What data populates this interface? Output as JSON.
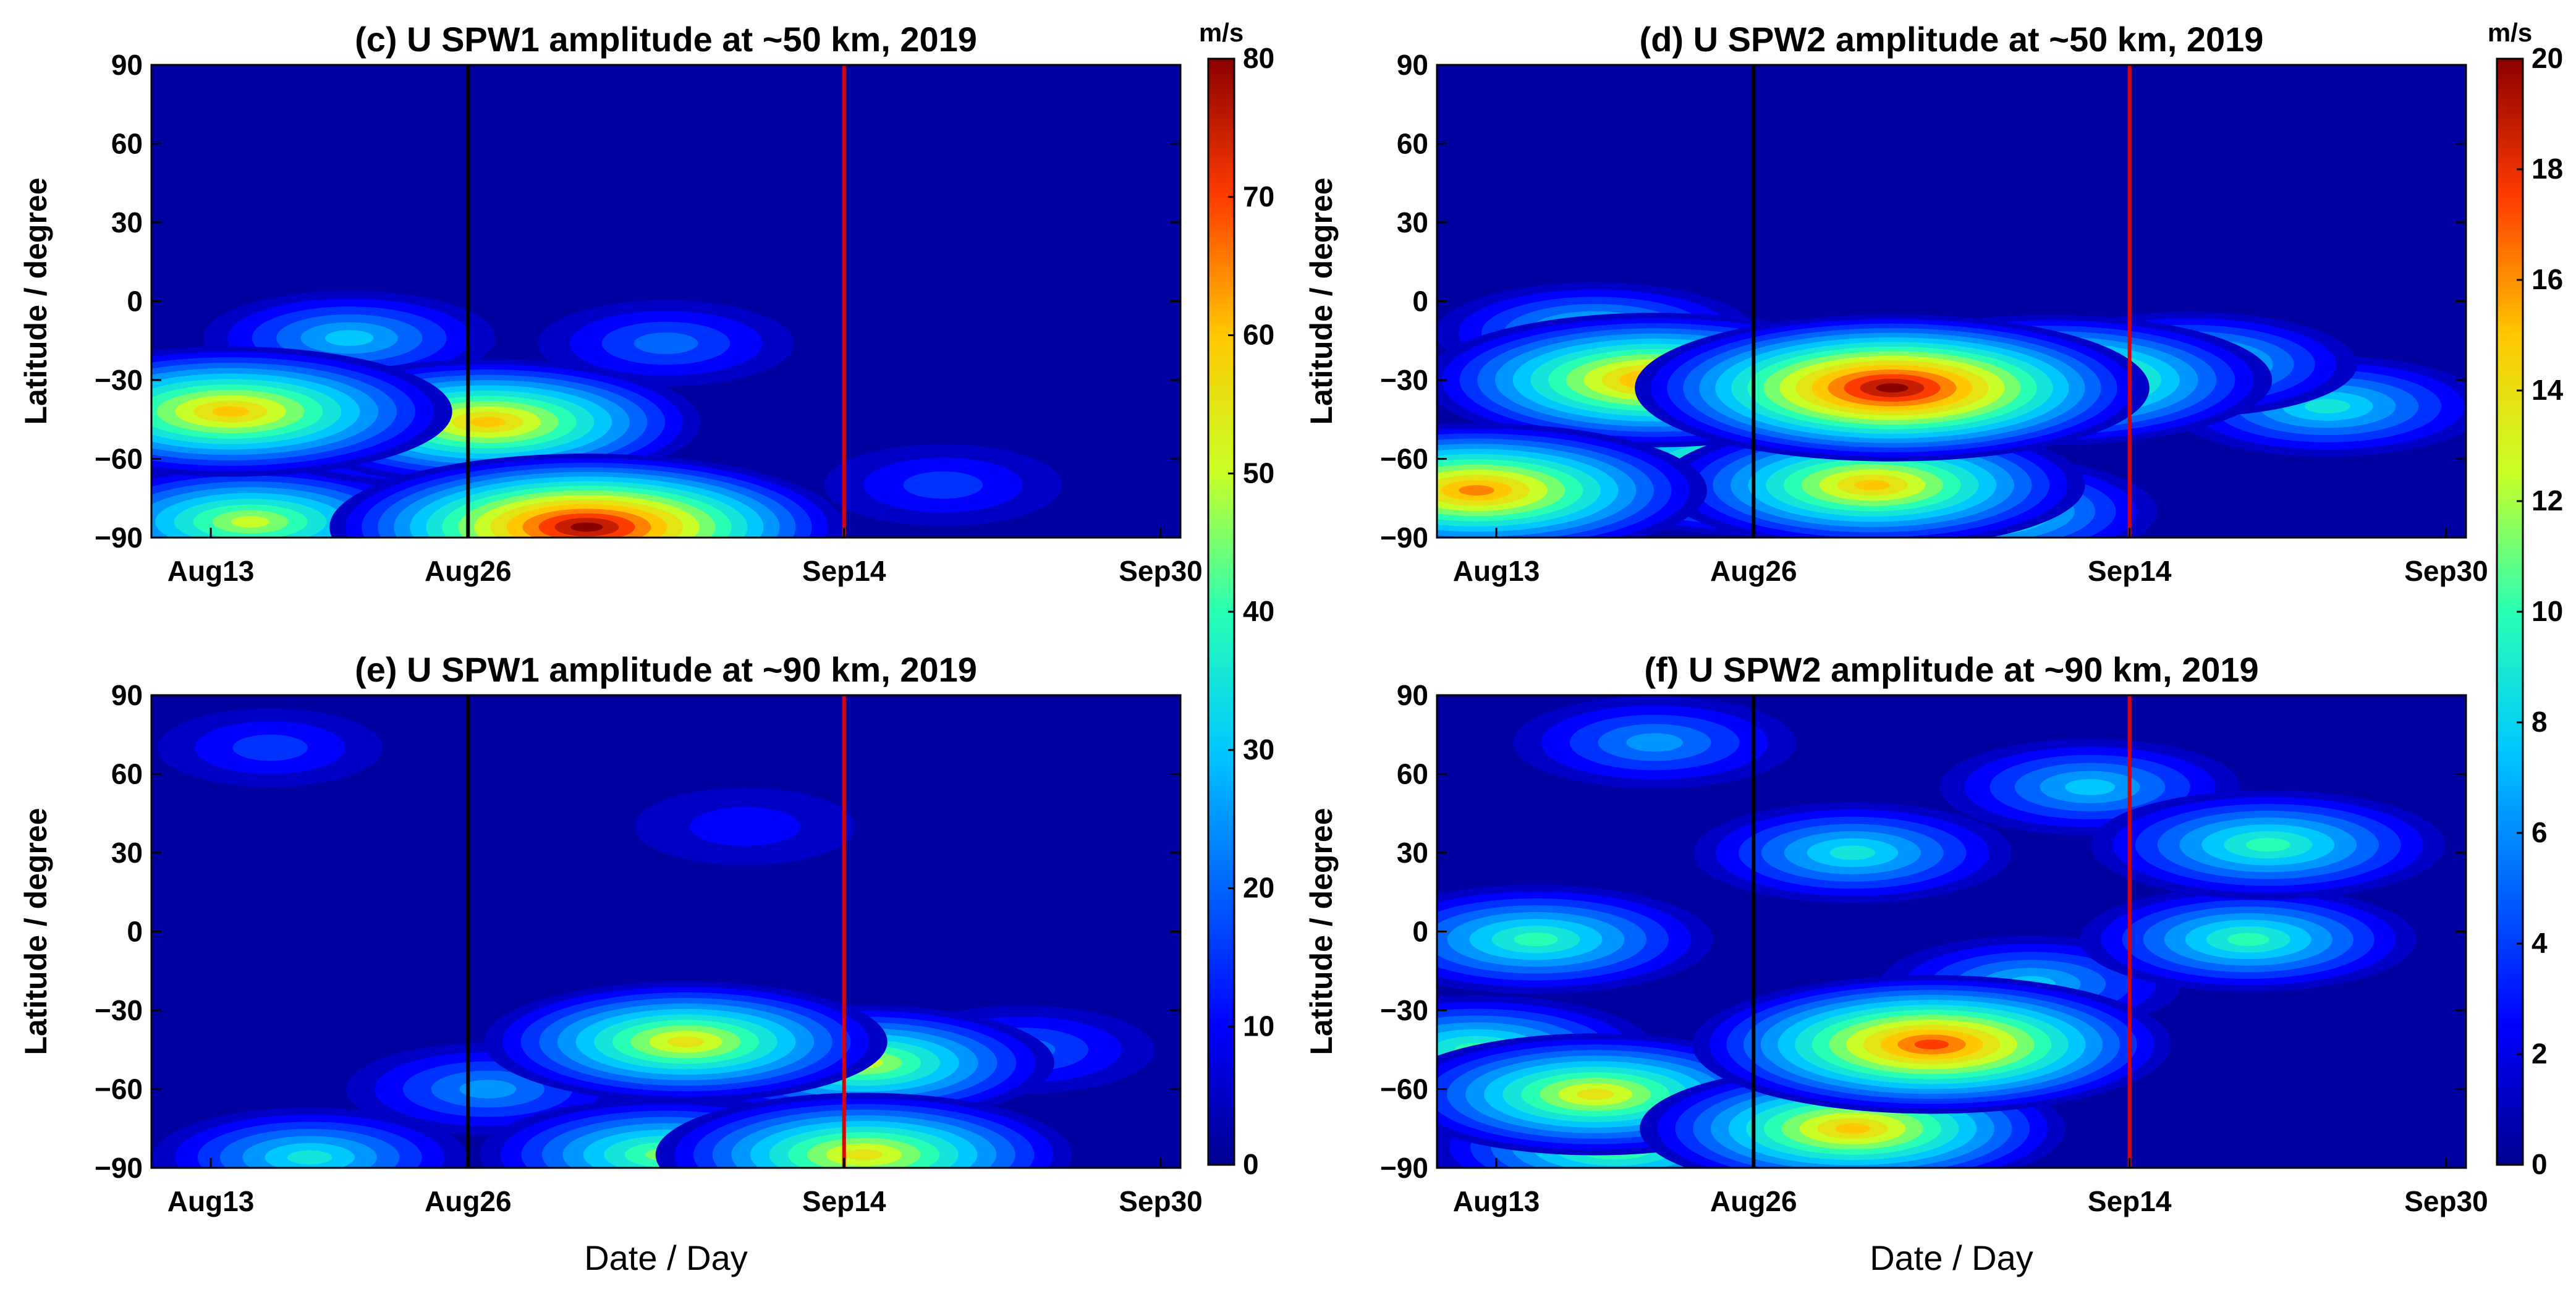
{
  "chart_data": [
    {
      "type": "heatmap",
      "title": "(c)  U SPW1 amplitude at ~50 km, 2019",
      "xlabel": "",
      "ylabel": "Latitude / degree",
      "y_ticks": [
        "90",
        "60",
        "30",
        "0",
        "−30",
        "−60",
        "−90"
      ],
      "x_ticks": [
        "Aug13",
        "Aug26",
        "Sep14",
        "Sep30"
      ],
      "ylim": [
        -90,
        90
      ],
      "colorbar": {
        "range": [
          0,
          80
        ],
        "unit": "m/s",
        "ticks": [
          "0",
          "10",
          "20",
          "30",
          "40",
          "50",
          "60",
          "70",
          "80"
        ]
      },
      "marker_lines": [
        {
          "date": "Aug26",
          "color": "#000000"
        },
        {
          "date": "Sep14",
          "color": "#e00000"
        }
      ],
      "features": [
        {
          "day": 4,
          "lat": -42,
          "value": 64
        },
        {
          "day": 17,
          "lat": -46,
          "value": 60
        },
        {
          "day": 14,
          "lat": -48,
          "value": 52
        },
        {
          "day": 5,
          "lat": -84,
          "value": 50
        },
        {
          "day": 22,
          "lat": -86,
          "value": 80
        },
        {
          "day": 10,
          "lat": -14,
          "value": 30
        },
        {
          "day": 26,
          "lat": -16,
          "value": 22
        },
        {
          "day": 40,
          "lat": -70,
          "value": 18
        }
      ]
    },
    {
      "type": "heatmap",
      "title": "(d)  U SPW2 amplitude at ~50 km, 2019",
      "xlabel": "",
      "ylabel": "Latitude / degree",
      "y_ticks": [
        "90",
        "60",
        "30",
        "0",
        "−30",
        "−60",
        "−90"
      ],
      "x_ticks": [
        "Aug13",
        "Aug26",
        "Sep14",
        "Sep30"
      ],
      "ylim": [
        -90,
        90
      ],
      "colorbar": {
        "range": [
          0,
          20
        ],
        "unit": "m/s",
        "ticks": [
          "0",
          "2",
          "4",
          "6",
          "8",
          "10",
          "12",
          "14",
          "16",
          "18",
          "20"
        ]
      },
      "marker_lines": [
        {
          "date": "Aug26",
          "color": "#000000"
        },
        {
          "date": "Sep14",
          "color": "#e00000"
        }
      ],
      "features": [
        {
          "day": 23,
          "lat": -33,
          "value": 20
        },
        {
          "day": 11,
          "lat": -30,
          "value": 17
        },
        {
          "day": 31,
          "lat": -30,
          "value": 16
        },
        {
          "day": 2,
          "lat": -72,
          "value": 17
        },
        {
          "day": 16,
          "lat": -65,
          "value": 15
        },
        {
          "day": 22,
          "lat": -70,
          "value": 15
        },
        {
          "day": 38,
          "lat": -24,
          "value": 10
        },
        {
          "day": 8,
          "lat": -12,
          "value": 9
        },
        {
          "day": 45,
          "lat": -40,
          "value": 9
        },
        {
          "day": 27,
          "lat": -80,
          "value": 12
        }
      ]
    },
    {
      "type": "heatmap",
      "title": "(e)  U SPW1 amplitude at ~90 km, 2019",
      "xlabel": "Date / Day",
      "ylabel": "Latitude / degree",
      "y_ticks": [
        "90",
        "60",
        "30",
        "0",
        "−30",
        "−60",
        "−90"
      ],
      "x_ticks": [
        "Aug13",
        "Aug26",
        "Sep14",
        "Sep30"
      ],
      "ylim": [
        -90,
        90
      ],
      "colorbar": {
        "range": [
          0,
          80
        ],
        "unit": "m/s",
        "ticks": [
          "0",
          "10",
          "20",
          "30",
          "40",
          "50",
          "60",
          "70",
          "80"
        ]
      },
      "marker_lines": [
        {
          "date": "Aug26",
          "color": "#000000"
        },
        {
          "date": "Sep14",
          "color": "#e00000"
        }
      ],
      "features": [
        {
          "day": 27,
          "lat": -42,
          "value": 55
        },
        {
          "day": 36,
          "lat": -50,
          "value": 50
        },
        {
          "day": 26,
          "lat": -85,
          "value": 48
        },
        {
          "day": 36,
          "lat": -85,
          "value": 58
        },
        {
          "day": 8,
          "lat": -86,
          "value": 35
        },
        {
          "day": 17,
          "lat": -60,
          "value": 28
        },
        {
          "day": 44,
          "lat": -45,
          "value": 24
        },
        {
          "day": 6,
          "lat": 70,
          "value": 15
        },
        {
          "day": 30,
          "lat": 40,
          "value": 14
        }
      ]
    },
    {
      "type": "heatmap",
      "title": "(f)  U SPW2 amplitude at ~90 km, 2019",
      "xlabel": "Date / Day",
      "ylabel": "Latitude / degree",
      "y_ticks": [
        "90",
        "60",
        "30",
        "0",
        "−30",
        "−60",
        "−90"
      ],
      "x_ticks": [
        "Aug13",
        "Aug26",
        "Sep14",
        "Sep30"
      ],
      "ylim": [
        -90,
        90
      ],
      "colorbar": {
        "range": [
          0,
          20
        ],
        "unit": "m/s",
        "ticks": [
          "0",
          "2",
          "4",
          "6",
          "8",
          "10",
          "12",
          "14",
          "16",
          "18",
          "20"
        ]
      },
      "marker_lines": [
        {
          "date": "Aug26",
          "color": "#000000"
        },
        {
          "date": "Sep14",
          "color": "#e00000"
        }
      ],
      "features": [
        {
          "day": 25,
          "lat": -43,
          "value": 18
        },
        {
          "day": 21,
          "lat": -75,
          "value": 15
        },
        {
          "day": 8,
          "lat": -62,
          "value": 14
        },
        {
          "day": 9,
          "lat": -82,
          "value": 12
        },
        {
          "day": 5,
          "lat": -3,
          "value": 11
        },
        {
          "day": 42,
          "lat": 33,
          "value": 11
        },
        {
          "day": 41,
          "lat": -3,
          "value": 10
        },
        {
          "day": 21,
          "lat": 30,
          "value": 9
        },
        {
          "day": 2,
          "lat": -45,
          "value": 11
        },
        {
          "day": 33,
          "lat": 55,
          "value": 8
        },
        {
          "day": 11,
          "lat": 72,
          "value": 7
        },
        {
          "day": 30,
          "lat": -20,
          "value": 8
        }
      ]
    }
  ]
}
